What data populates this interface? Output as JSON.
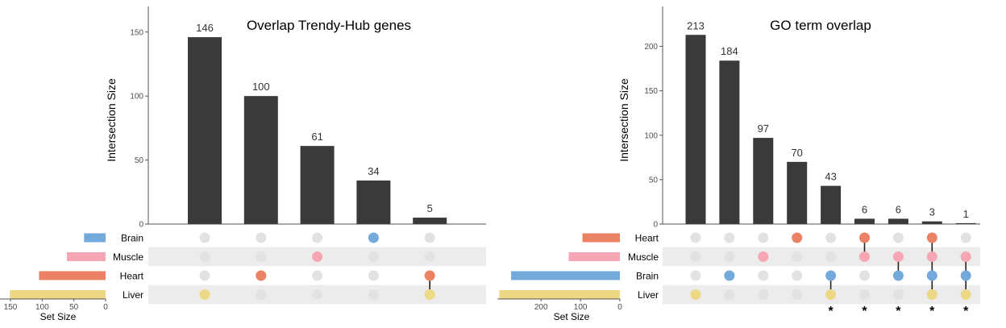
{
  "colors": {
    "bar": "#3a3a3a",
    "dot_inactive": "#e2e2e2",
    "row_shade": "#ececec",
    "axis": "#555555",
    "Brain": "#74a9dc",
    "Muscle": "#f7a6b4",
    "Heart": "#ec8264",
    "Liver": "#ecd885"
  },
  "chart_data": [
    {
      "type": "upset",
      "title": "Overlap Trendy-Hub genes",
      "ylabel": "Intersection Size",
      "set_size_label": "Set Size",
      "ylim": [
        0,
        170
      ],
      "yticks": [
        "0",
        "50",
        "100",
        "150"
      ],
      "set_size_ticks": [
        "150",
        "100",
        "50",
        "0"
      ],
      "set_size_max": 150,
      "sets": [
        {
          "name": "Brain",
          "size": 34
        },
        {
          "name": "Muscle",
          "size": 61
        },
        {
          "name": "Heart",
          "size": 105
        },
        {
          "name": "Liver",
          "size": 151
        }
      ],
      "intersections": [
        {
          "value": 146,
          "label": "146",
          "members": [
            "Liver"
          ],
          "star": false
        },
        {
          "value": 100,
          "label": "100",
          "members": [
            "Heart"
          ],
          "star": false
        },
        {
          "value": 61,
          "label": "61",
          "members": [
            "Muscle"
          ],
          "star": false
        },
        {
          "value": 34,
          "label": "34",
          "members": [
            "Brain"
          ],
          "star": false
        },
        {
          "value": 5,
          "label": "5",
          "members": [
            "Heart",
            "Liver"
          ],
          "star": false
        }
      ]
    },
    {
      "type": "upset",
      "title": "GO term overlap",
      "ylabel": "Intersection Size",
      "set_size_label": "Set Size",
      "ylim": [
        0,
        245
      ],
      "yticks": [
        "0",
        "50",
        "100",
        "150",
        "200"
      ],
      "set_size_ticks": [
        "200",
        "100",
        "0"
      ],
      "set_size_max": 270,
      "sets": [
        {
          "name": "Heart",
          "size": 95
        },
        {
          "name": "Muscle",
          "size": 130
        },
        {
          "name": "Brain",
          "size": 276
        },
        {
          "name": "Liver",
          "size": 306
        }
      ],
      "intersections": [
        {
          "value": 213,
          "label": "213",
          "members": [
            "Liver"
          ],
          "star": false
        },
        {
          "value": 184,
          "label": "184",
          "members": [
            "Brain"
          ],
          "star": false
        },
        {
          "value": 97,
          "label": "97",
          "members": [
            "Muscle"
          ],
          "star": false
        },
        {
          "value": 70,
          "label": "70",
          "members": [
            "Heart"
          ],
          "star": false
        },
        {
          "value": 43,
          "label": "43",
          "members": [
            "Brain",
            "Liver"
          ],
          "star": true
        },
        {
          "value": 6,
          "label": "6",
          "members": [
            "Heart",
            "Muscle"
          ],
          "star": true
        },
        {
          "value": 6,
          "label": "6",
          "members": [
            "Muscle",
            "Brain"
          ],
          "star": true
        },
        {
          "value": 3,
          "label": "3",
          "members": [
            "Heart",
            "Muscle",
            "Brain",
            "Liver"
          ],
          "star": true
        },
        {
          "value": 1,
          "label": "1",
          "members": [
            "Muscle",
            "Brain",
            "Liver"
          ],
          "star": true
        }
      ],
      "star_symbol": "*"
    }
  ]
}
